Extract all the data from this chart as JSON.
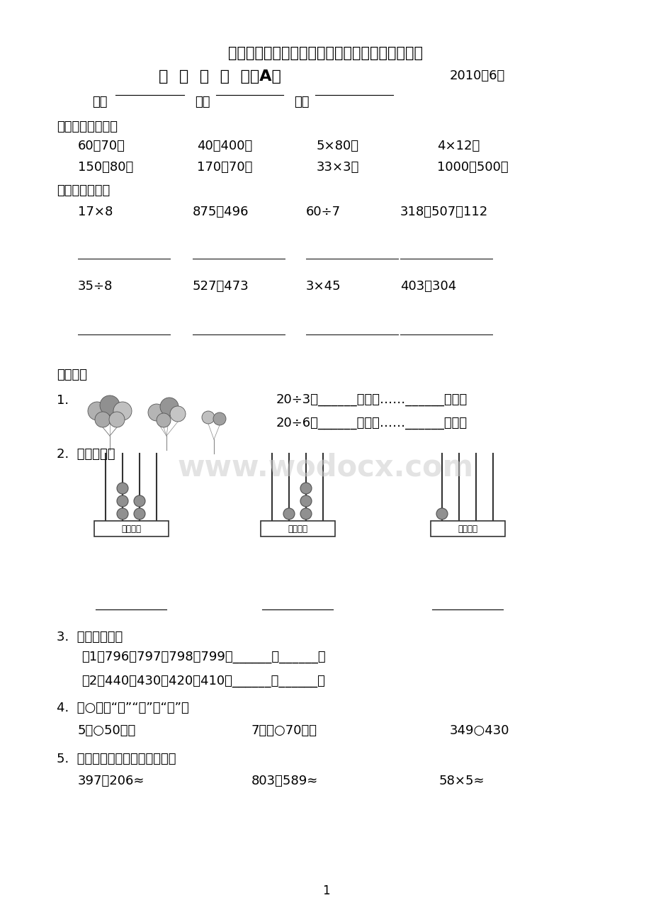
{
  "bg_color": "#ffffff",
  "title1": "义务教育课程标准实验教科书数学二年级（下册）",
  "title2_left": "期  末  调  查  卷（A）",
  "title2_right": "2010年6月",
  "info_label1": "班级",
  "info_label2": "姓名",
  "info_label3": "成绩",
  "section1_title": "一、直接写出得数",
  "row1": [
    "60＋70＝",
    "40＋400＝",
    "5×80＝",
    "4×12＝"
  ],
  "row2": [
    "150－80＝",
    "170－70＝",
    "33×3＝",
    "1000－500＝"
  ],
  "section2_title": "二、用竖式计算",
  "calc_row1": [
    "17×8",
    "875－496",
    "60÷7",
    "318＋507＋112"
  ],
  "calc_row2": [
    "35÷8",
    "527＋473",
    "3×45",
    "403－304"
  ],
  "section3_title": "三、填空",
  "fill1_label": "1.",
  "fill1_right1": "20÷3＝______（个）……______（个）",
  "fill1_right2": "20÷6＝______（束）……______（个）",
  "fill2_label": "2.  看图写数。",
  "fill3_label": "3.  按规律写数。",
  "fill3_1": "（1）796、797、798、799、______、______。",
  "fill3_2": "（2）440、430、420、410、______、______。",
  "fill4_label": "4.  在○里填“＞”“＜”或“＝”。",
  "fill4_items": [
    "5米○50分米",
    "7分米○70毫米",
    "349○430"
  ],
  "fill5_label": "5.  下面各题的得数大约是几百？",
  "fill5_items": [
    "397＋206≈",
    "803－589≈",
    "58×5≈"
  ],
  "watermark": "www.wodocx.com",
  "page_num": "1",
  "abacus_label": "千百十个"
}
